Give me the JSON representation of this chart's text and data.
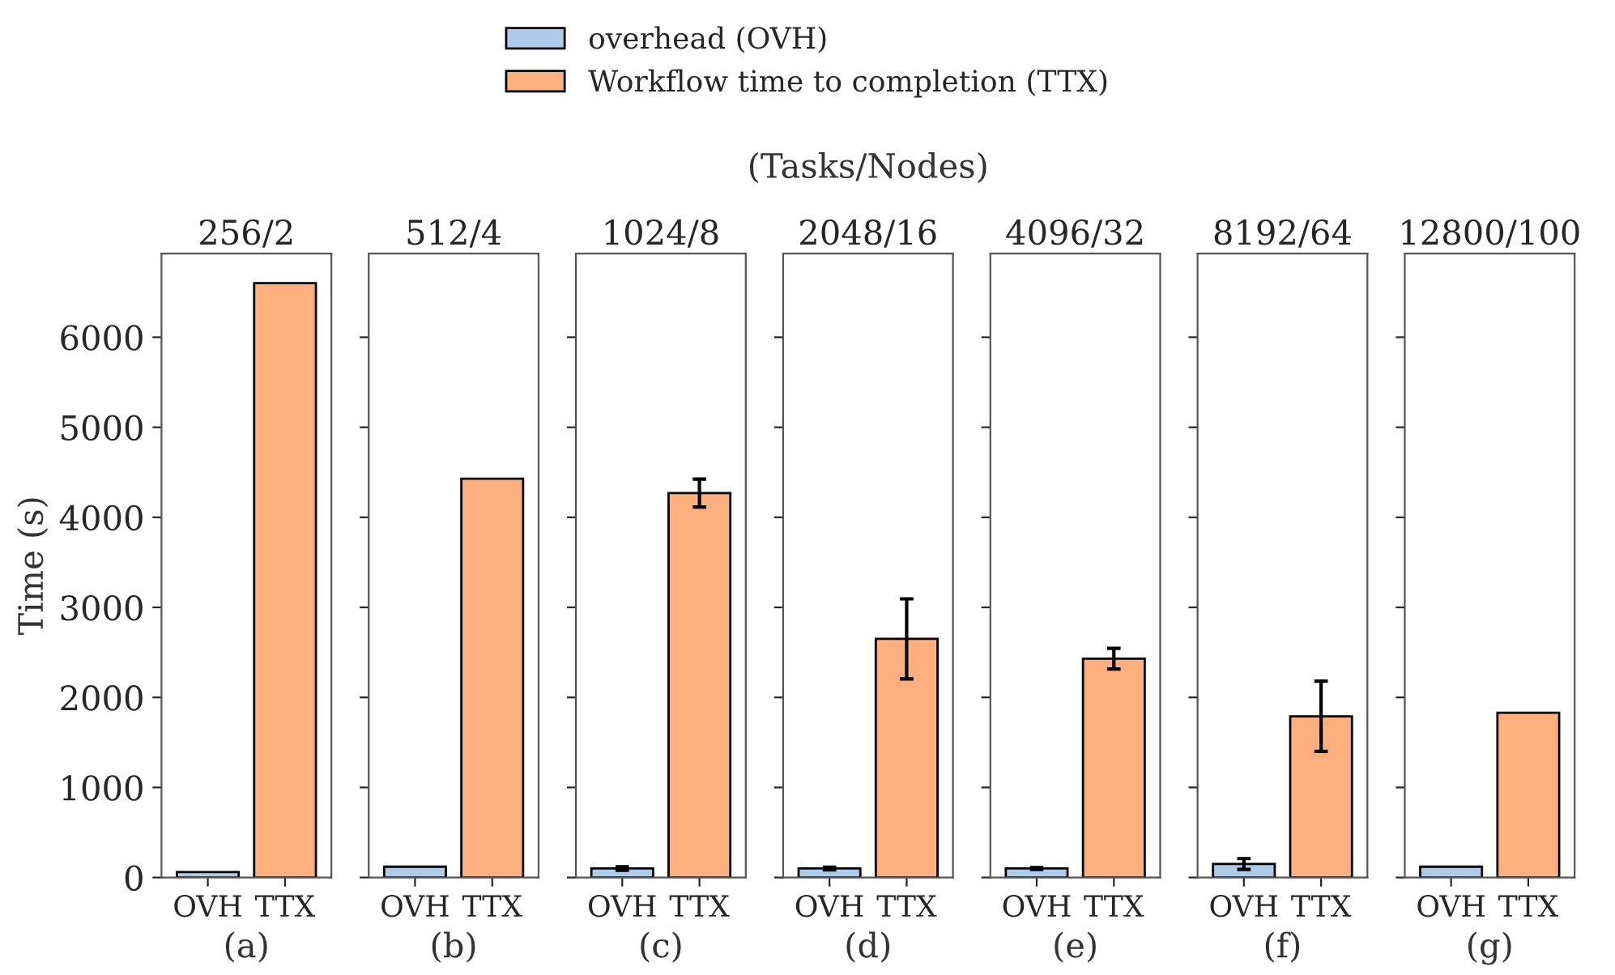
{
  "chart_data": [
    {
      "type": "bar",
      "title": "256/2",
      "xlabel": "(a)",
      "ylabel": "Time (s)",
      "categories": [
        "OVH",
        "TTX"
      ],
      "legend": "top",
      "ylim": [
        0,
        6930
      ],
      "yticks": [
        0,
        1000,
        2000,
        3000,
        4000,
        5000,
        6000
      ],
      "series": [
        {
          "name": "overhead (OVH)",
          "color": "#aecbe8",
          "values": [
            60,
            null
          ]
        },
        {
          "name": "Workflow time to completion (TTX)",
          "color": "#fdb07e",
          "values": [
            null,
            6600
          ]
        }
      ]
    },
    {
      "type": "bar",
      "title": "512/4",
      "xlabel": "(b)",
      "categories": [
        "OVH",
        "TTX"
      ],
      "ylim": [
        0,
        6930
      ],
      "yticks": [
        {
          "value": 0,
          "label": null
        },
        {
          "value": 1000,
          "label": null
        },
        {
          "value": 2000,
          "label": null
        },
        {
          "value": 3000,
          "label": null
        },
        {
          "value": 4000,
          "label": null
        },
        {
          "value": 5000,
          "label": null
        },
        {
          "value": 6000,
          "label": null
        }
      ],
      "tick_labels": "x",
      "series": [
        {
          "color": "#aecbe8",
          "values": [
            120,
            null
          ]
        },
        {
          "color": "#fdb07e",
          "values": [
            null,
            4430
          ]
        }
      ]
    },
    {
      "type": "bar",
      "title": "1024/8",
      "xlabel": "(c)",
      "categories": [
        "OVH",
        "TTX"
      ],
      "ylim": [
        0,
        6930
      ],
      "yticks": [
        {
          "value": 0,
          "label": null
        },
        {
          "value": 1000,
          "label": null
        },
        {
          "value": 2000,
          "label": null
        },
        {
          "value": 3000,
          "label": null
        },
        {
          "value": 4000,
          "label": null
        },
        {
          "value": 5000,
          "label": null
        },
        {
          "value": 6000,
          "label": null
        }
      ],
      "tick_labels": "x",
      "series": [
        {
          "color": "#aecbe8",
          "values": [
            100,
            null
          ],
          "errors": [
            20,
            null
          ]
        },
        {
          "color": "#fdb07e",
          "values": [
            null,
            4270
          ],
          "errors": [
            null,
            155
          ]
        }
      ]
    },
    {
      "type": "bar",
      "title": "2048/16",
      "subtitle": "(Tasks/Nodes)",
      "xlabel": "(d)",
      "categories": [
        "OVH",
        "TTX"
      ],
      "ylim": [
        0,
        6930
      ],
      "yticks": [
        {
          "value": 0,
          "label": null
        },
        {
          "value": 1000,
          "label": null
        },
        {
          "value": 2000,
          "label": null
        },
        {
          "value": 3000,
          "label": null
        },
        {
          "value": 4000,
          "label": null
        },
        {
          "value": 5000,
          "label": null
        },
        {
          "value": 6000,
          "label": null
        }
      ],
      "tick_labels": "x",
      "series": [
        {
          "color": "#aecbe8",
          "values": [
            100,
            null
          ],
          "errors": [
            15,
            null
          ]
        },
        {
          "color": "#fdb07e",
          "values": [
            null,
            2650
          ],
          "errors": [
            null,
            445
          ]
        }
      ]
    },
    {
      "type": "bar",
      "title": "4096/32",
      "xlabel": "(e)",
      "categories": [
        "OVH",
        "TTX"
      ],
      "ylim": [
        0,
        6930
      ],
      "yticks": [
        {
          "value": 0,
          "label": null
        },
        {
          "value": 1000,
          "label": null
        },
        {
          "value": 2000,
          "label": null
        },
        {
          "value": 3000,
          "label": null
        },
        {
          "value": 4000,
          "label": null
        },
        {
          "value": 5000,
          "label": null
        },
        {
          "value": 6000,
          "label": null
        }
      ],
      "tick_labels": "x",
      "series": [
        {
          "color": "#aecbe8",
          "values": [
            100,
            null
          ],
          "errors": [
            10,
            null
          ]
        },
        {
          "color": "#fdb07e",
          "values": [
            null,
            2430
          ],
          "errors": [
            null,
            115
          ]
        }
      ]
    },
    {
      "type": "bar",
      "title": "8192/64",
      "xlabel": "(f)",
      "categories": [
        "OVH",
        "TTX"
      ],
      "ylim": [
        0,
        6930
      ],
      "yticks": [
        {
          "value": 0,
          "label": null
        },
        {
          "value": 1000,
          "label": null
        },
        {
          "value": 2000,
          "label": null
        },
        {
          "value": 3000,
          "label": null
        },
        {
          "value": 4000,
          "label": null
        },
        {
          "value": 5000,
          "label": null
        },
        {
          "value": 6000,
          "label": null
        }
      ],
      "tick_labels": "x",
      "series": [
        {
          "color": "#aecbe8",
          "values": [
            150,
            null
          ],
          "errors": [
            60,
            null
          ]
        },
        {
          "color": "#fdb07e",
          "values": [
            null,
            1790
          ],
          "errors": [
            null,
            390
          ]
        }
      ]
    },
    {
      "type": "bar",
      "title": "12800/100",
      "xlabel": "(g)",
      "categories": [
        "OVH",
        "TTX"
      ],
      "ylim": [
        0,
        6930
      ],
      "yticks": [
        {
          "value": 0,
          "label": null
        },
        {
          "value": 1000,
          "label": null
        },
        {
          "value": 2000,
          "label": null
        },
        {
          "value": 3000,
          "label": null
        },
        {
          "value": 4000,
          "label": null
        },
        {
          "value": 5000,
          "label": null
        },
        {
          "value": 6000,
          "label": null
        }
      ],
      "tick_labels": "x",
      "series": [
        {
          "color": "#aecbe8",
          "values": [
            120,
            null
          ]
        },
        {
          "color": "#fdb07e",
          "values": [
            null,
            1830
          ]
        }
      ]
    }
  ]
}
